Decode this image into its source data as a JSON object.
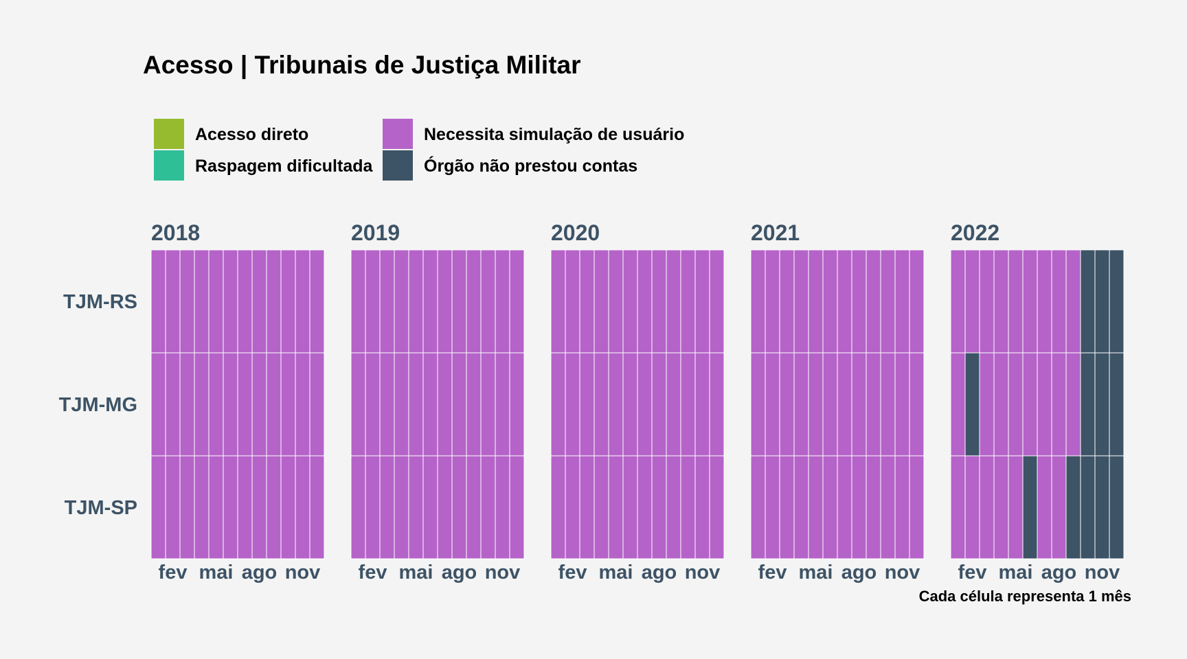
{
  "chart_data": {
    "type": "heatmap",
    "title": "Acesso | Tribunais de Justiça Militar",
    "caption": "Cada célula representa 1 mês",
    "legend": [
      {
        "key": "acesso_direto",
        "label": "Acesso direto",
        "color": "#96bb2f"
      },
      {
        "key": "raspagem",
        "label": "Raspagem dificultada",
        "color": "#2ebf96"
      },
      {
        "key": "simulacao",
        "label": "Necessita simulação de usuário",
        "color": "#b563c8"
      },
      {
        "key": "nao_prestou",
        "label": "Órgão não prestou contas",
        "color": "#3d5366"
      }
    ],
    "legend_position": "top-left",
    "grid": false,
    "text_color": "#3d5366",
    "years": [
      "2018",
      "2019",
      "2020",
      "2021",
      "2022"
    ],
    "months_per_year": 12,
    "x_tick_labels": [
      "fev",
      "mai",
      "ago",
      "nov"
    ],
    "x_tick_months": [
      2,
      5,
      8,
      11
    ],
    "rows": [
      "TJM-RS",
      "TJM-MG",
      "TJM-SP"
    ],
    "cells": {
      "TJM-RS": {
        "2018": [
          "simulacao",
          "simulacao",
          "simulacao",
          "simulacao",
          "simulacao",
          "simulacao",
          "simulacao",
          "simulacao",
          "simulacao",
          "simulacao",
          "simulacao",
          "simulacao"
        ],
        "2019": [
          "simulacao",
          "simulacao",
          "simulacao",
          "simulacao",
          "simulacao",
          "simulacao",
          "simulacao",
          "simulacao",
          "simulacao",
          "simulacao",
          "simulacao",
          "simulacao"
        ],
        "2020": [
          "simulacao",
          "simulacao",
          "simulacao",
          "simulacao",
          "simulacao",
          "simulacao",
          "simulacao",
          "simulacao",
          "simulacao",
          "simulacao",
          "simulacao",
          "simulacao"
        ],
        "2021": [
          "simulacao",
          "simulacao",
          "simulacao",
          "simulacao",
          "simulacao",
          "simulacao",
          "simulacao",
          "simulacao",
          "simulacao",
          "simulacao",
          "simulacao",
          "simulacao"
        ],
        "2022": [
          "simulacao",
          "simulacao",
          "simulacao",
          "simulacao",
          "simulacao",
          "simulacao",
          "simulacao",
          "simulacao",
          "simulacao",
          "nao_prestou",
          "nao_prestou",
          "nao_prestou"
        ]
      },
      "TJM-MG": {
        "2018": [
          "simulacao",
          "simulacao",
          "simulacao",
          "simulacao",
          "simulacao",
          "simulacao",
          "simulacao",
          "simulacao",
          "simulacao",
          "simulacao",
          "simulacao",
          "simulacao"
        ],
        "2019": [
          "simulacao",
          "simulacao",
          "simulacao",
          "simulacao",
          "simulacao",
          "simulacao",
          "simulacao",
          "simulacao",
          "simulacao",
          "simulacao",
          "simulacao",
          "simulacao"
        ],
        "2020": [
          "simulacao",
          "simulacao",
          "simulacao",
          "simulacao",
          "simulacao",
          "simulacao",
          "simulacao",
          "simulacao",
          "simulacao",
          "simulacao",
          "simulacao",
          "simulacao"
        ],
        "2021": [
          "simulacao",
          "simulacao",
          "simulacao",
          "simulacao",
          "simulacao",
          "simulacao",
          "simulacao",
          "simulacao",
          "simulacao",
          "simulacao",
          "simulacao",
          "simulacao"
        ],
        "2022": [
          "simulacao",
          "nao_prestou",
          "simulacao",
          "simulacao",
          "simulacao",
          "simulacao",
          "simulacao",
          "simulacao",
          "simulacao",
          "nao_prestou",
          "nao_prestou",
          "nao_prestou"
        ]
      },
      "TJM-SP": {
        "2018": [
          "simulacao",
          "simulacao",
          "simulacao",
          "simulacao",
          "simulacao",
          "simulacao",
          "simulacao",
          "simulacao",
          "simulacao",
          "simulacao",
          "simulacao",
          "simulacao"
        ],
        "2019": [
          "simulacao",
          "simulacao",
          "simulacao",
          "simulacao",
          "simulacao",
          "simulacao",
          "simulacao",
          "simulacao",
          "simulacao",
          "simulacao",
          "simulacao",
          "simulacao"
        ],
        "2020": [
          "simulacao",
          "simulacao",
          "simulacao",
          "simulacao",
          "simulacao",
          "simulacao",
          "simulacao",
          "simulacao",
          "simulacao",
          "simulacao",
          "simulacao",
          "simulacao"
        ],
        "2021": [
          "simulacao",
          "simulacao",
          "simulacao",
          "simulacao",
          "simulacao",
          "simulacao",
          "simulacao",
          "simulacao",
          "simulacao",
          "simulacao",
          "simulacao",
          "simulacao"
        ],
        "2022": [
          "simulacao",
          "simulacao",
          "simulacao",
          "simulacao",
          "simulacao",
          "nao_prestou",
          "simulacao",
          "simulacao",
          "nao_prestou",
          "nao_prestou",
          "nao_prestou",
          "nao_prestou"
        ]
      }
    }
  }
}
